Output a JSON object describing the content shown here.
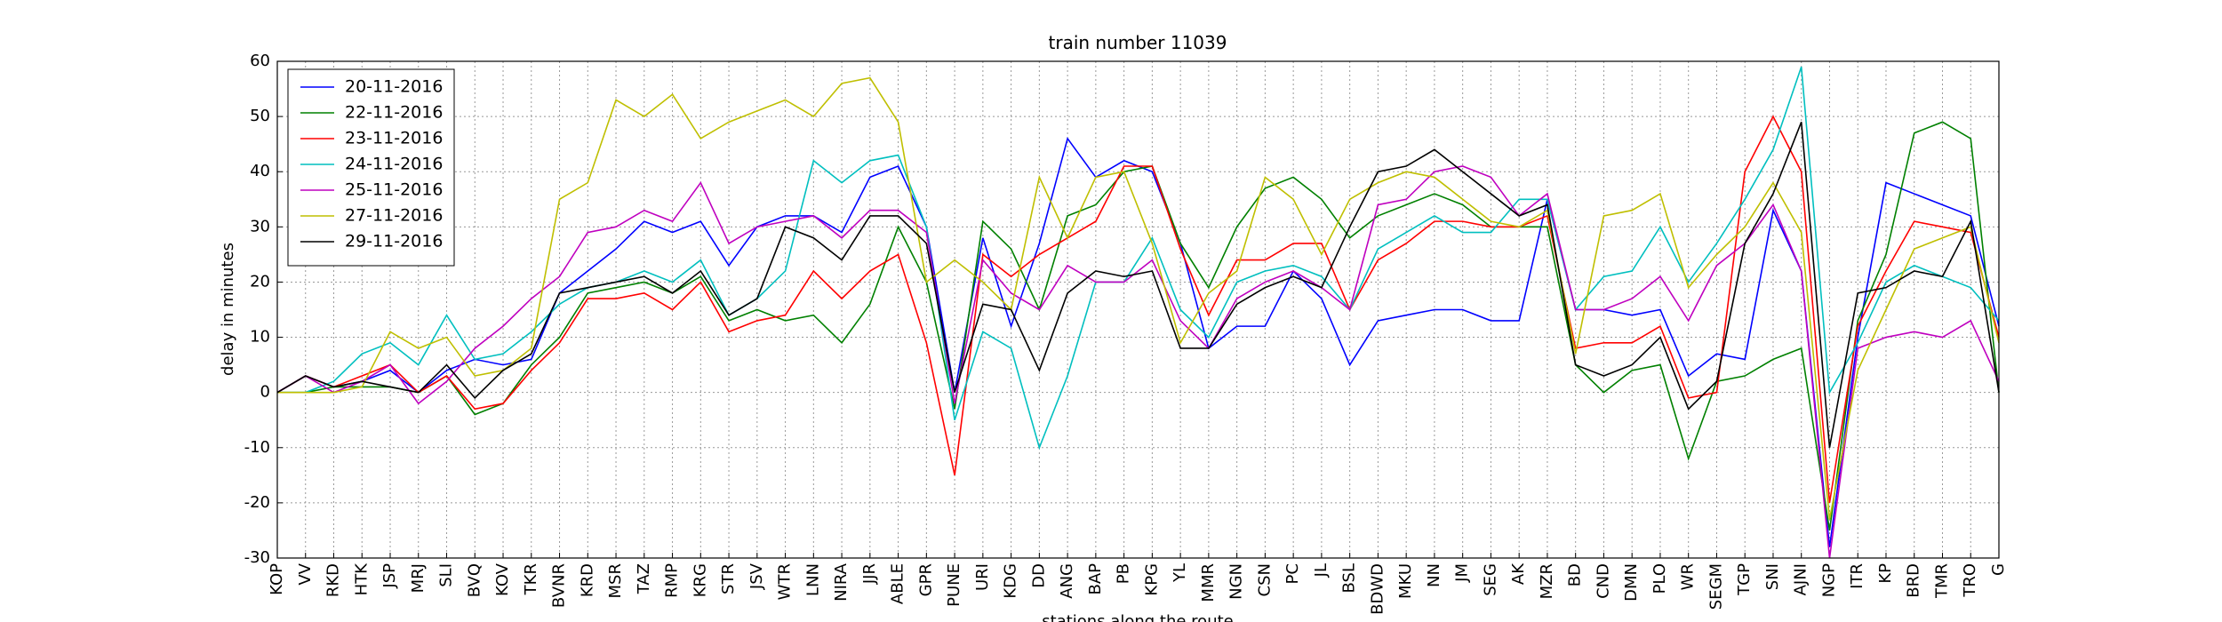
{
  "chart_data": {
    "type": "line",
    "title": "train number 11039",
    "ylabel": "delay in minutes",
    "xlabel": "stations along the route",
    "categories": [
      "KOP",
      "VV",
      "RKD",
      "HTK",
      "JSP",
      "MRJ",
      "SLI",
      "BVQ",
      "KOV",
      "TKR",
      "BVNR",
      "KRD",
      "MSR",
      "TAZ",
      "RMP",
      "KRG",
      "STR",
      "JSV",
      "WTR",
      "LNN",
      "NIRA",
      "JJR",
      "ABLE",
      "GPR",
      "PUNE",
      "URI",
      "KDG",
      "DD",
      "ANG",
      "BAP",
      "PB",
      "KPG",
      "YL",
      "MMR",
      "NGN",
      "CSN",
      "PC",
      "JL",
      "BSL",
      "BDWD",
      "MKU",
      "NN",
      "JM",
      "SEG",
      "AK",
      "MZR",
      "BD",
      "CND",
      "DMN",
      "PLO",
      "WR",
      "SEGM",
      "TGP",
      "SNI",
      "AJNI",
      "NGP",
      "ITR",
      "KP",
      "BRD",
      "TMR",
      "TRO",
      "G"
    ],
    "series": [
      {
        "name": "20-11-2016",
        "color": "#0000ff",
        "values": [
          0,
          3,
          1,
          2,
          4,
          0,
          4,
          6,
          5,
          6,
          18,
          22,
          26,
          31,
          29,
          31,
          23,
          30,
          32,
          32,
          29,
          39,
          41,
          30,
          0,
          28,
          12,
          27,
          46,
          39,
          42,
          40,
          27,
          8,
          12,
          12,
          22,
          17,
          5,
          13,
          14,
          15,
          15,
          13,
          13,
          35,
          15,
          15,
          14,
          15,
          3,
          7,
          6,
          33,
          22,
          -28,
          10,
          38,
          36,
          34,
          32,
          12
        ]
      },
      {
        "name": "22-11-2016",
        "color": "#008000",
        "values": [
          0,
          0,
          1,
          1,
          1,
          0,
          3,
          -4,
          -2,
          5,
          10,
          18,
          19,
          20,
          18,
          21,
          13,
          15,
          13,
          14,
          9,
          16,
          30,
          20,
          -3,
          31,
          26,
          15,
          32,
          34,
          40,
          41,
          27,
          19,
          30,
          37,
          39,
          35,
          28,
          32,
          34,
          36,
          34,
          30,
          30,
          30,
          5,
          0,
          4,
          5,
          -12,
          2,
          3,
          6,
          8,
          -25,
          13,
          25,
          47,
          49,
          46,
          0
        ]
      },
      {
        "name": "23-11-2016",
        "color": "#ff0000",
        "values": [
          0,
          3,
          1,
          3,
          5,
          0,
          3,
          -3,
          -2,
          4,
          9,
          17,
          17,
          18,
          15,
          20,
          11,
          13,
          14,
          22,
          17,
          22,
          25,
          9,
          -15,
          25,
          21,
          25,
          28,
          31,
          41,
          41,
          26,
          14,
          24,
          24,
          27,
          27,
          15,
          24,
          27,
          31,
          31,
          30,
          30,
          32,
          8,
          9,
          9,
          12,
          -1,
          0,
          40,
          50,
          40,
          -20,
          12,
          22,
          31,
          30,
          29,
          10
        ]
      },
      {
        "name": "24-11-2016",
        "color": "#00bfbf",
        "values": [
          0,
          0,
          2,
          7,
          9,
          5,
          14,
          6,
          7,
          11,
          16,
          19,
          20,
          22,
          20,
          24,
          14,
          17,
          22,
          42,
          38,
          42,
          43,
          30,
          -5,
          11,
          8,
          -10,
          3,
          20,
          20,
          28,
          15,
          10,
          20,
          22,
          23,
          21,
          15,
          26,
          29,
          32,
          29,
          29,
          35,
          35,
          15,
          21,
          22,
          30,
          20,
          27,
          35,
          44,
          59,
          0,
          9,
          20,
          23,
          21,
          19,
          13
        ]
      },
      {
        "name": "25-11-2016",
        "color": "#bf00bf",
        "values": [
          0,
          3,
          0,
          2,
          5,
          -2,
          2,
          8,
          12,
          17,
          21,
          29,
          30,
          33,
          31,
          38,
          27,
          30,
          31,
          32,
          28,
          33,
          33,
          29,
          -2,
          24,
          18,
          15,
          23,
          20,
          20,
          24,
          13,
          8,
          17,
          20,
          22,
          19,
          15,
          34,
          35,
          40,
          41,
          39,
          32,
          36,
          15,
          15,
          17,
          21,
          13,
          23,
          27,
          34,
          22,
          -30,
          8,
          10,
          11,
          10,
          13,
          2
        ]
      },
      {
        "name": "27-11-2016",
        "color": "#bfbf00",
        "values": [
          0,
          0,
          0,
          1,
          11,
          8,
          10,
          3,
          4,
          8,
          35,
          38,
          53,
          50,
          54,
          46,
          49,
          51,
          53,
          50,
          56,
          57,
          49,
          20,
          24,
          20,
          15,
          39,
          28,
          39,
          40,
          27,
          9,
          18,
          22,
          39,
          35,
          25,
          35,
          38,
          40,
          39,
          35,
          31,
          30,
          33,
          7,
          32,
          33,
          36,
          19,
          25,
          30,
          38,
          29,
          -23,
          4,
          15,
          26,
          28,
          30,
          9
        ]
      },
      {
        "name": "29-11-2016",
        "color": "#000000",
        "values": [
          0,
          3,
          1,
          2,
          1,
          0,
          5,
          -1,
          4,
          7,
          18,
          19,
          20,
          21,
          18,
          22,
          14,
          17,
          30,
          28,
          24,
          32,
          32,
          27,
          0,
          16,
          15,
          4,
          18,
          22,
          21,
          22,
          8,
          8,
          16,
          19,
          21,
          19,
          30,
          40,
          41,
          44,
          40,
          36,
          32,
          34,
          5,
          3,
          5,
          10,
          -3,
          2,
          27,
          36,
          49,
          -10,
          18,
          19,
          22,
          21,
          31,
          0
        ]
      }
    ],
    "ylim": [
      -30,
      60
    ],
    "yticks": [
      -30,
      -20,
      -10,
      0,
      10,
      20,
      30,
      40,
      50,
      60
    ],
    "grid": true,
    "legend": "upper left"
  }
}
